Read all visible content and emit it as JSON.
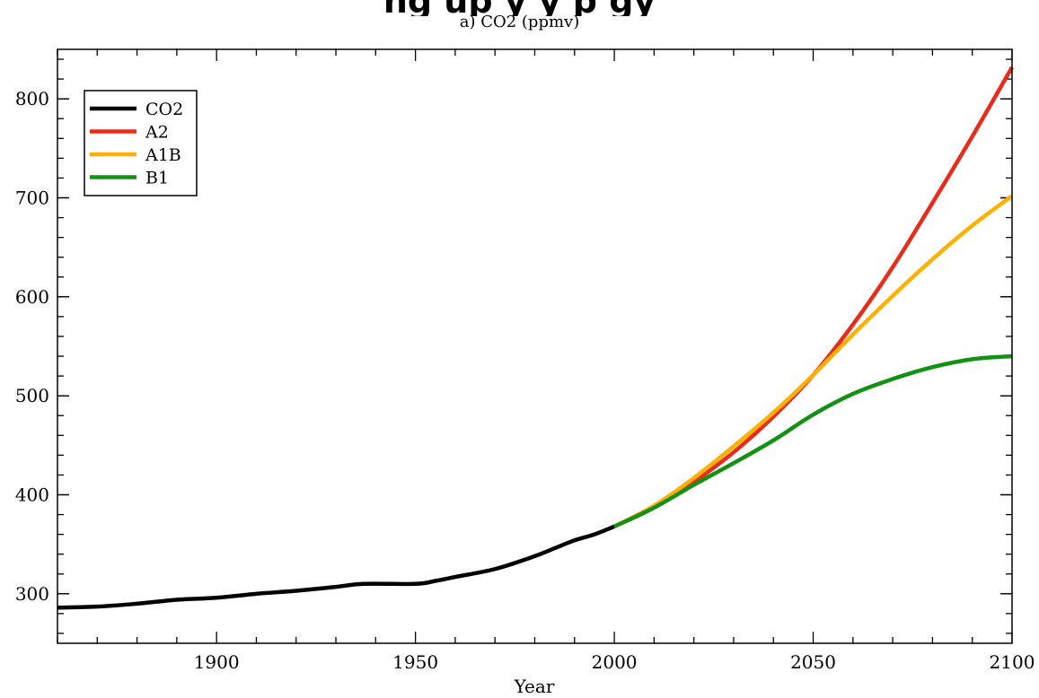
{
  "banner_text": "ng up       y   y p         gy",
  "chart_data": {
    "type": "line",
    "title": "a) CO2 (ppmv)",
    "xlabel": "Year",
    "ylabel": "",
    "xlim": [
      1860,
      2100
    ],
    "ylim": [
      250,
      850
    ],
    "x_ticks": [
      1900,
      1950,
      2000,
      2050,
      2100
    ],
    "y_ticks": [
      300,
      400,
      500,
      600,
      700,
      800
    ],
    "x_tick_labels": [
      "1900",
      "1950",
      "2000",
      "2050",
      "2100"
    ],
    "y_tick_labels": [
      "300",
      "400",
      "500",
      "600",
      "700",
      "800"
    ],
    "grid": false,
    "legend_position": "top-left",
    "series": [
      {
        "name": "CO2",
        "color": "#000000",
        "x": [
          1860,
          1870,
          1880,
          1890,
          1900,
          1910,
          1920,
          1930,
          1937,
          1950,
          1955,
          1960,
          1970,
          1980,
          1985,
          1990,
          1995,
          2000
        ],
        "y": [
          286,
          287,
          290,
          294,
          296,
          300,
          303,
          307,
          310,
          310,
          313,
          317,
          325,
          338,
          346,
          354,
          360,
          368
        ]
      },
      {
        "name": "A2",
        "color": "#e82c1c",
        "x": [
          2000,
          2010,
          2020,
          2030,
          2040,
          2050,
          2060,
          2070,
          2080,
          2090,
          2100
        ],
        "y": [
          368,
          387,
          413,
          443,
          479,
          521,
          572,
          630,
          695,
          762,
          832
        ]
      },
      {
        "name": "A1B",
        "color": "#ffb000",
        "x": [
          2000,
          2010,
          2020,
          2030,
          2040,
          2050,
          2060,
          2070,
          2080,
          2090,
          2100
        ],
        "y": [
          368,
          389,
          417,
          449,
          483,
          521,
          562,
          601,
          638,
          672,
          702
        ]
      },
      {
        "name": "B1",
        "color": "#129112",
        "x": [
          2000,
          2010,
          2020,
          2030,
          2040,
          2050,
          2060,
          2070,
          2080,
          2090,
          2100
        ],
        "y": [
          368,
          387,
          410,
          432,
          455,
          481,
          502,
          517,
          529,
          537,
          540
        ]
      }
    ]
  }
}
